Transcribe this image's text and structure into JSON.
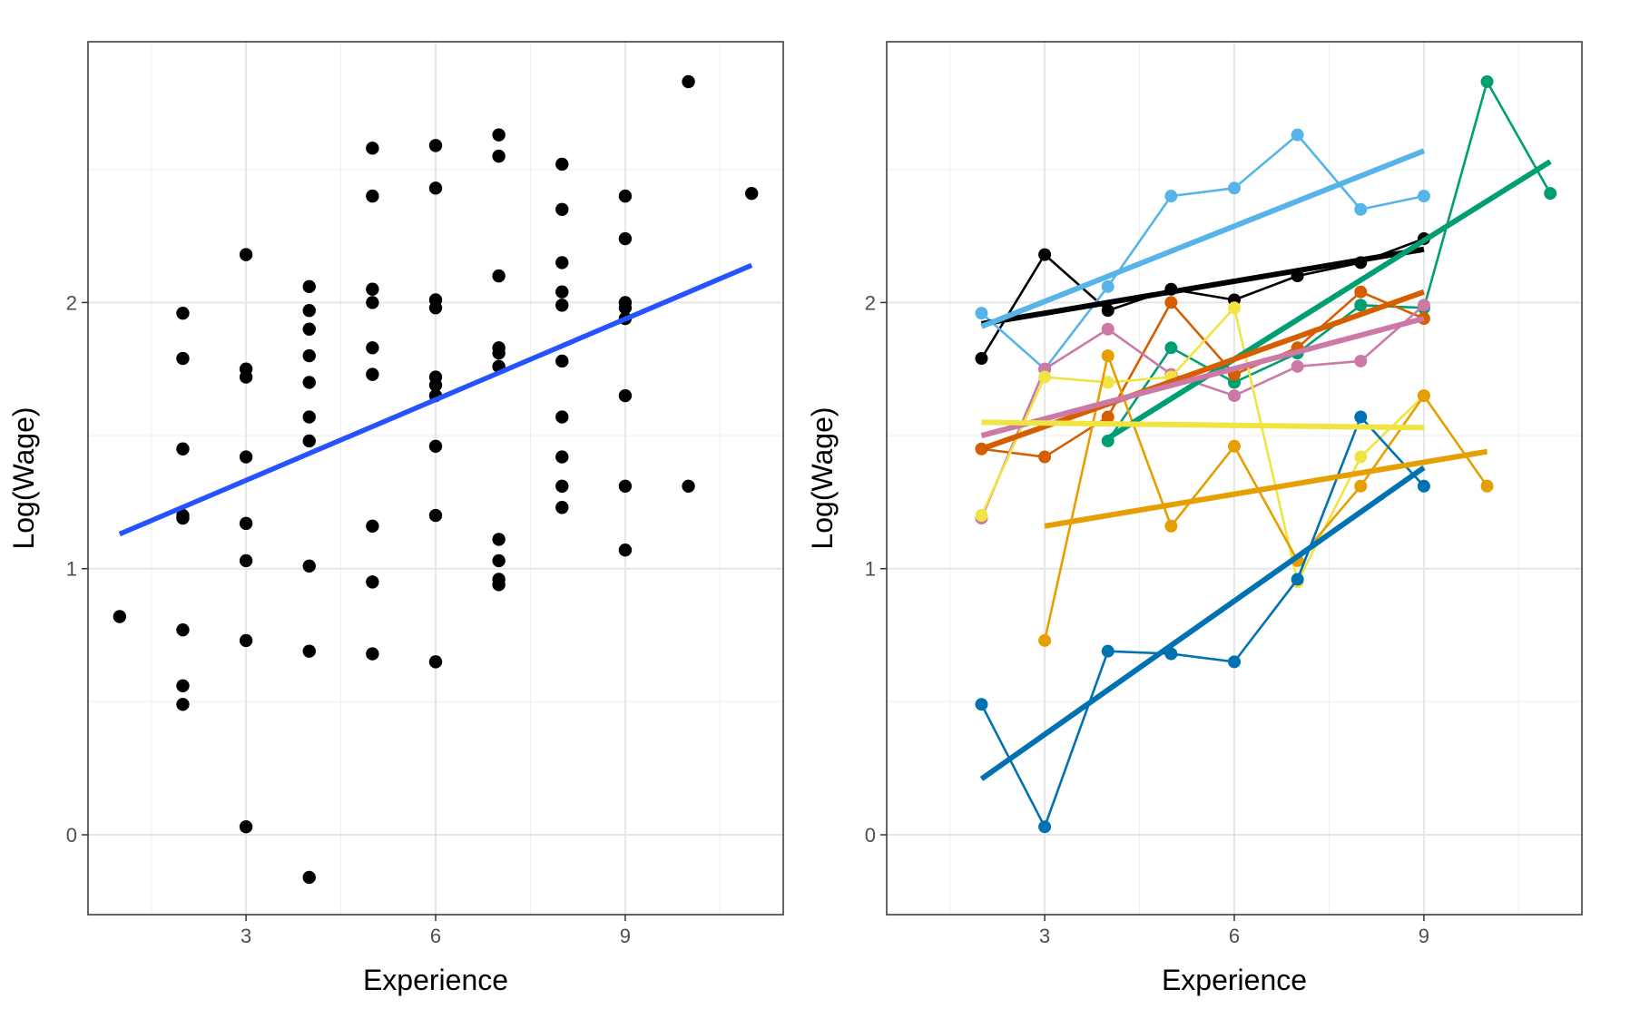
{
  "chart_data": [
    {
      "type": "scatter",
      "title": "",
      "xlabel": "Experience",
      "ylabel": "Log(Wage)",
      "xlim": [
        0.5,
        11.5
      ],
      "ylim": [
        -0.3,
        2.98
      ],
      "x_ticks": [
        3,
        6,
        9
      ],
      "y_ticks": [
        0,
        1,
        2
      ],
      "x_tick_labels": [
        "3",
        "6",
        "9"
      ],
      "y_tick_labels": [
        "0",
        "1",
        "2"
      ],
      "grid": true,
      "point_color": "#000000",
      "points": [
        [
          1,
          0.82
        ],
        [
          2,
          1.96
        ],
        [
          2,
          1.79
        ],
        [
          2,
          1.45
        ],
        [
          2,
          1.2
        ],
        [
          2,
          1.19
        ],
        [
          2,
          0.77
        ],
        [
          2,
          0.56
        ],
        [
          2,
          0.49
        ],
        [
          3,
          2.18
        ],
        [
          3,
          1.75
        ],
        [
          3,
          1.72
        ],
        [
          3,
          1.42
        ],
        [
          3,
          1.17
        ],
        [
          3,
          1.03
        ],
        [
          3,
          0.73
        ],
        [
          3,
          0.03
        ],
        [
          4,
          2.06
        ],
        [
          4,
          1.97
        ],
        [
          4,
          1.9
        ],
        [
          4,
          1.8
        ],
        [
          4,
          1.7
        ],
        [
          4,
          1.57
        ],
        [
          4,
          1.48
        ],
        [
          4,
          1.01
        ],
        [
          4,
          0.69
        ],
        [
          4,
          -0.16
        ],
        [
          5,
          2.58
        ],
        [
          5,
          2.4
        ],
        [
          5,
          2.05
        ],
        [
          5,
          2.0
        ],
        [
          5,
          1.83
        ],
        [
          5,
          1.73
        ],
        [
          5,
          1.16
        ],
        [
          5,
          0.95
        ],
        [
          5,
          0.68
        ],
        [
          6,
          2.59
        ],
        [
          6,
          2.43
        ],
        [
          6,
          2.01
        ],
        [
          6,
          1.98
        ],
        [
          6,
          1.72
        ],
        [
          6,
          1.69
        ],
        [
          6,
          1.65
        ],
        [
          6,
          1.46
        ],
        [
          6,
          1.2
        ],
        [
          6,
          0.65
        ],
        [
          7,
          2.63
        ],
        [
          7,
          2.55
        ],
        [
          7,
          2.1
        ],
        [
          7,
          1.83
        ],
        [
          7,
          1.81
        ],
        [
          7,
          1.76
        ],
        [
          7,
          1.11
        ],
        [
          7,
          1.03
        ],
        [
          7,
          0.96
        ],
        [
          7,
          0.94
        ],
        [
          8,
          2.52
        ],
        [
          8,
          2.35
        ],
        [
          8,
          2.15
        ],
        [
          8,
          2.04
        ],
        [
          8,
          1.99
        ],
        [
          8,
          1.78
        ],
        [
          8,
          1.57
        ],
        [
          8,
          1.42
        ],
        [
          8,
          1.31
        ],
        [
          8,
          1.23
        ],
        [
          9,
          2.4
        ],
        [
          9,
          2.24
        ],
        [
          9,
          2.0
        ],
        [
          9,
          1.98
        ],
        [
          9,
          1.94
        ],
        [
          9,
          1.65
        ],
        [
          9,
          1.31
        ],
        [
          9,
          1.07
        ],
        [
          10,
          2.83
        ],
        [
          10,
          1.31
        ],
        [
          11,
          2.41
        ]
      ],
      "fit_line": {
        "color": "#2453ff",
        "x": [
          1,
          11
        ],
        "y": [
          1.13,
          2.14
        ]
      }
    },
    {
      "type": "line",
      "title": "",
      "xlabel": "Experience",
      "ylabel": "Log(Wage)",
      "xlim": [
        0.5,
        11.5
      ],
      "ylim": [
        -0.3,
        2.98
      ],
      "x_ticks": [
        3,
        6,
        9
      ],
      "y_ticks": [
        0,
        1,
        2
      ],
      "x_tick_labels": [
        "3",
        "6",
        "9"
      ],
      "y_tick_labels": [
        "0",
        "1",
        "2"
      ],
      "grid": true,
      "legend": false,
      "series": [
        {
          "color": "#000000",
          "x": [
            2,
            3,
            4,
            5,
            6,
            7,
            8,
            9
          ],
          "y": [
            1.79,
            2.18,
            1.97,
            2.05,
            2.01,
            2.1,
            2.15,
            2.24
          ],
          "fit": {
            "x": [
              2,
              9
            ],
            "y": [
              1.92,
              2.2
            ]
          }
        },
        {
          "color": "#56b4e9",
          "x": [
            2,
            3,
            4,
            5,
            6,
            7,
            8,
            9
          ],
          "y": [
            1.96,
            1.75,
            2.06,
            2.4,
            2.43,
            2.63,
            2.35,
            2.4
          ],
          "fit": {
            "x": [
              2,
              9
            ],
            "y": [
              1.91,
              2.57
            ]
          }
        },
        {
          "color": "#009e73",
          "x": [
            4,
            5,
            6,
            7,
            8,
            9,
            10,
            11
          ],
          "y": [
            1.48,
            1.83,
            1.7,
            1.81,
            1.99,
            1.98,
            2.83,
            2.41
          ],
          "fit": {
            "x": [
              4,
              11
            ],
            "y": [
              1.49,
              2.53
            ]
          }
        },
        {
          "color": "#d55e00",
          "x": [
            2,
            3,
            4,
            5,
            6,
            7,
            8,
            9
          ],
          "y": [
            1.45,
            1.42,
            1.57,
            2.0,
            1.73,
            1.83,
            2.04,
            1.94
          ],
          "fit": {
            "x": [
              2,
              9
            ],
            "y": [
              1.45,
              2.04
            ]
          }
        },
        {
          "color": "#cc79a7",
          "x": [
            2,
            3,
            4,
            5,
            6,
            7,
            8,
            9
          ],
          "y": [
            1.19,
            1.75,
            1.9,
            1.73,
            1.65,
            1.76,
            1.78,
            1.99
          ],
          "fit": {
            "x": [
              2,
              9
            ],
            "y": [
              1.5,
              1.94
            ]
          }
        },
        {
          "color": "#f0e442",
          "x": [
            2,
            3,
            4,
            5,
            6,
            7,
            8,
            9
          ],
          "y": [
            1.2,
            1.72,
            1.7,
            1.72,
            1.98,
            0.95,
            1.42,
            1.65
          ],
          "fit": {
            "x": [
              2,
              9
            ],
            "y": [
              1.55,
              1.53
            ]
          }
        },
        {
          "color": "#e69f00",
          "x": [
            3,
            4,
            5,
            6,
            7,
            8,
            9,
            10
          ],
          "y": [
            0.73,
            1.8,
            1.16,
            1.46,
            1.03,
            1.31,
            1.65,
            1.31
          ],
          "fit": {
            "x": [
              3,
              10
            ],
            "y": [
              1.16,
              1.44
            ]
          }
        },
        {
          "color": "#0072b2",
          "x": [
            2,
            3,
            4,
            5,
            6,
            7,
            8,
            9
          ],
          "y": [
            0.49,
            0.03,
            0.69,
            0.68,
            0.65,
            0.96,
            1.57,
            1.31
          ],
          "fit": {
            "x": [
              2,
              9
            ],
            "y": [
              0.21,
              1.38
            ]
          }
        }
      ]
    }
  ]
}
